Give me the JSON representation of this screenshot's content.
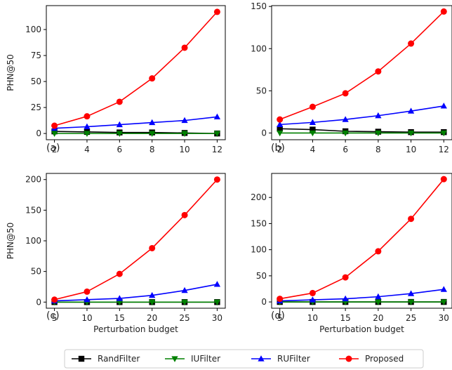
{
  "legend": {
    "placement": "bottom-center",
    "entries": [
      {
        "name": "RandFilter",
        "color": "#000000",
        "marker": "square"
      },
      {
        "name": "IUFilter",
        "color": "#008000",
        "marker": "triangle-down"
      },
      {
        "name": "RUFilter",
        "color": "#0000ff",
        "marker": "triangle-up"
      },
      {
        "name": "Proposed",
        "color": "#ff0000",
        "marker": "circle"
      }
    ]
  },
  "chart_data": [
    {
      "type": "line",
      "panel_label": "(a)",
      "xlabel": "",
      "ylabel": "PHN@50",
      "x": [
        2,
        4,
        6,
        8,
        10,
        12
      ],
      "xticks": [
        2,
        4,
        6,
        8,
        10,
        12
      ],
      "xlim": [
        1.5,
        12.5
      ],
      "yticks": [
        0,
        25,
        50,
        75,
        100
      ],
      "ylim": [
        -6,
        123
      ],
      "series": [
        {
          "name": "RandFilter",
          "values": [
            2,
            1.5,
            1,
            1,
            0.5,
            0
          ]
        },
        {
          "name": "IUFilter",
          "values": [
            0,
            0,
            0,
            0,
            0,
            0
          ]
        },
        {
          "name": "RUFilter",
          "values": [
            5,
            6.5,
            8.5,
            10.5,
            12.5,
            16
          ]
        },
        {
          "name": "Proposed",
          "values": [
            7.5,
            16.5,
            30.5,
            53,
            82.5,
            117
          ]
        }
      ]
    },
    {
      "type": "line",
      "panel_label": "(b)",
      "xlabel": "",
      "ylabel": "",
      "x": [
        2,
        4,
        6,
        8,
        10,
        12
      ],
      "xticks": [
        2,
        4,
        6,
        8,
        10,
        12
      ],
      "xlim": [
        1.5,
        12.5
      ],
      "yticks": [
        0,
        50,
        100,
        150
      ],
      "ylim": [
        -8,
        151
      ],
      "series": [
        {
          "name": "RandFilter",
          "values": [
            5,
            4,
            2,
            1.5,
            1,
            1
          ]
        },
        {
          "name": "IUFilter",
          "values": [
            0,
            0,
            0,
            0,
            0,
            0
          ]
        },
        {
          "name": "RUFilter",
          "values": [
            10,
            12.5,
            16,
            20.5,
            26,
            32
          ]
        },
        {
          "name": "Proposed",
          "values": [
            16,
            31,
            47,
            73,
            106,
            144
          ]
        }
      ]
    },
    {
      "type": "line",
      "panel_label": "(c)",
      "xlabel": "Perturbation budget",
      "ylabel": "PHN@50",
      "x": [
        5,
        10,
        15,
        20,
        25,
        30
      ],
      "xticks": [
        5,
        10,
        15,
        20,
        25,
        30
      ],
      "xlim": [
        3.75,
        31.25
      ],
      "yticks": [
        0,
        50,
        100,
        150,
        200
      ],
      "ylim": [
        -10,
        210
      ],
      "series": [
        {
          "name": "RandFilter",
          "values": [
            0,
            0,
            0,
            0,
            0,
            0
          ]
        },
        {
          "name": "IUFilter",
          "values": [
            0,
            0,
            0,
            0,
            0,
            0
          ]
        },
        {
          "name": "RUFilter",
          "values": [
            2,
            4,
            6,
            11,
            19,
            29
          ]
        },
        {
          "name": "Proposed",
          "values": [
            4,
            17,
            46,
            88,
            142,
            200
          ]
        }
      ]
    },
    {
      "type": "line",
      "panel_label": "(d)",
      "xlabel": "Perturbation budget",
      "ylabel": "",
      "x": [
        5,
        10,
        15,
        20,
        25,
        30
      ],
      "xticks": [
        5,
        10,
        15,
        20,
        25,
        30
      ],
      "xlim": [
        3.75,
        31.25
      ],
      "yticks": [
        0,
        50,
        100,
        150,
        200
      ],
      "ylim": [
        -12,
        246
      ],
      "series": [
        {
          "name": "RandFilter",
          "values": [
            0,
            0,
            0,
            0,
            0,
            0
          ]
        },
        {
          "name": "IUFilter",
          "values": [
            0,
            0,
            0,
            0,
            0,
            0
          ]
        },
        {
          "name": "RUFilter",
          "values": [
            2,
            4,
            6,
            10,
            16,
            24
          ]
        },
        {
          "name": "Proposed",
          "values": [
            6,
            17,
            47,
            97,
            159,
            235
          ]
        }
      ]
    }
  ]
}
